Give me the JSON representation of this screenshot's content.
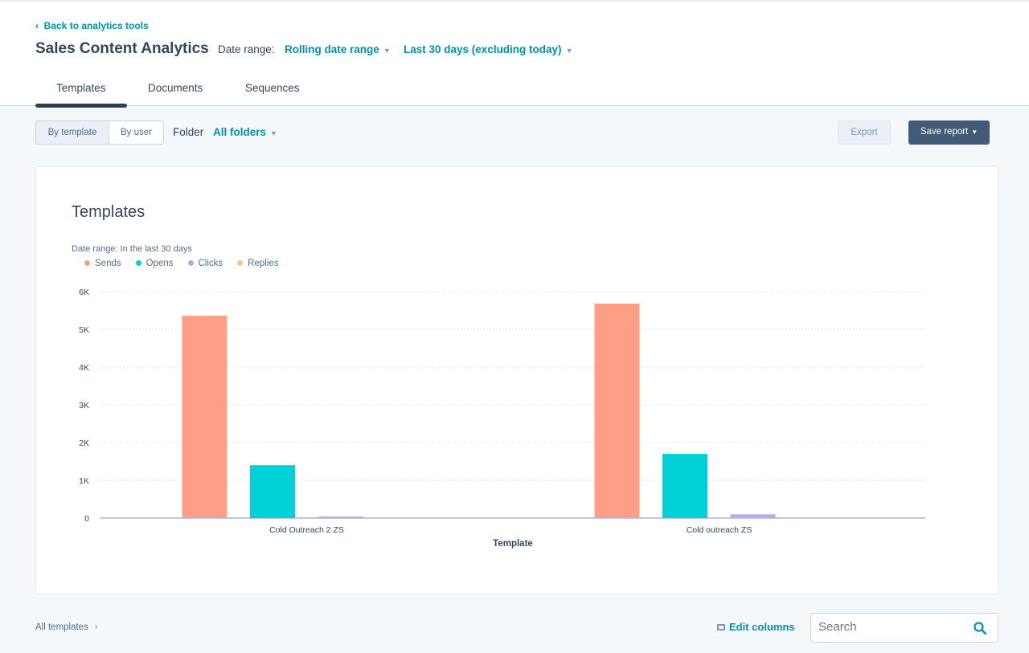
{
  "header": {
    "back_link": "Back to analytics tools",
    "title": "Sales Content Analytics",
    "date_range_label": "Date range:",
    "date_range_type": "Rolling date range",
    "date_range_value": "Last 30 days (excluding today)"
  },
  "tabs": [
    {
      "label": "Templates",
      "active": true
    },
    {
      "label": "Documents"
    },
    {
      "label": "Sequences"
    }
  ],
  "toolbar": {
    "by_template": "By template",
    "by_user": "By user",
    "folder_label": "Folder",
    "folder_value": "All folders",
    "export": "Export",
    "save_report": "Save report"
  },
  "card": {
    "title": "Templates",
    "date_range": "Date range:  In the last 30 days"
  },
  "chart_data": {
    "type": "bar",
    "xlabel": "Template",
    "ylabel": "",
    "ylim": [
      0,
      6000
    ],
    "yticks": [
      "0",
      "1K",
      "2K",
      "3K",
      "4K",
      "5K",
      "6K"
    ],
    "grid": true,
    "legend": "top-left",
    "categories": [
      "Cold Outreach 2 ZS",
      "Cold outreach ZS"
    ],
    "series": [
      {
        "name": "Sends",
        "color": "#ff9f87",
        "values": [
          5360,
          5680
        ]
      },
      {
        "name": "Opens",
        "color": "#00d0d8",
        "values": [
          1400,
          1700
        ]
      },
      {
        "name": "Clicks",
        "color": "#b9a8ec",
        "values": [
          40,
          100
        ]
      },
      {
        "name": "Replies",
        "color": "#f8c68c",
        "values": [
          0,
          0
        ]
      }
    ]
  },
  "footer": {
    "all_templates": "All templates",
    "edit_columns": "Edit columns",
    "search_placeholder": "Search"
  },
  "colors": {
    "accent": "#0091ae",
    "primary_button": "#425b76"
  }
}
